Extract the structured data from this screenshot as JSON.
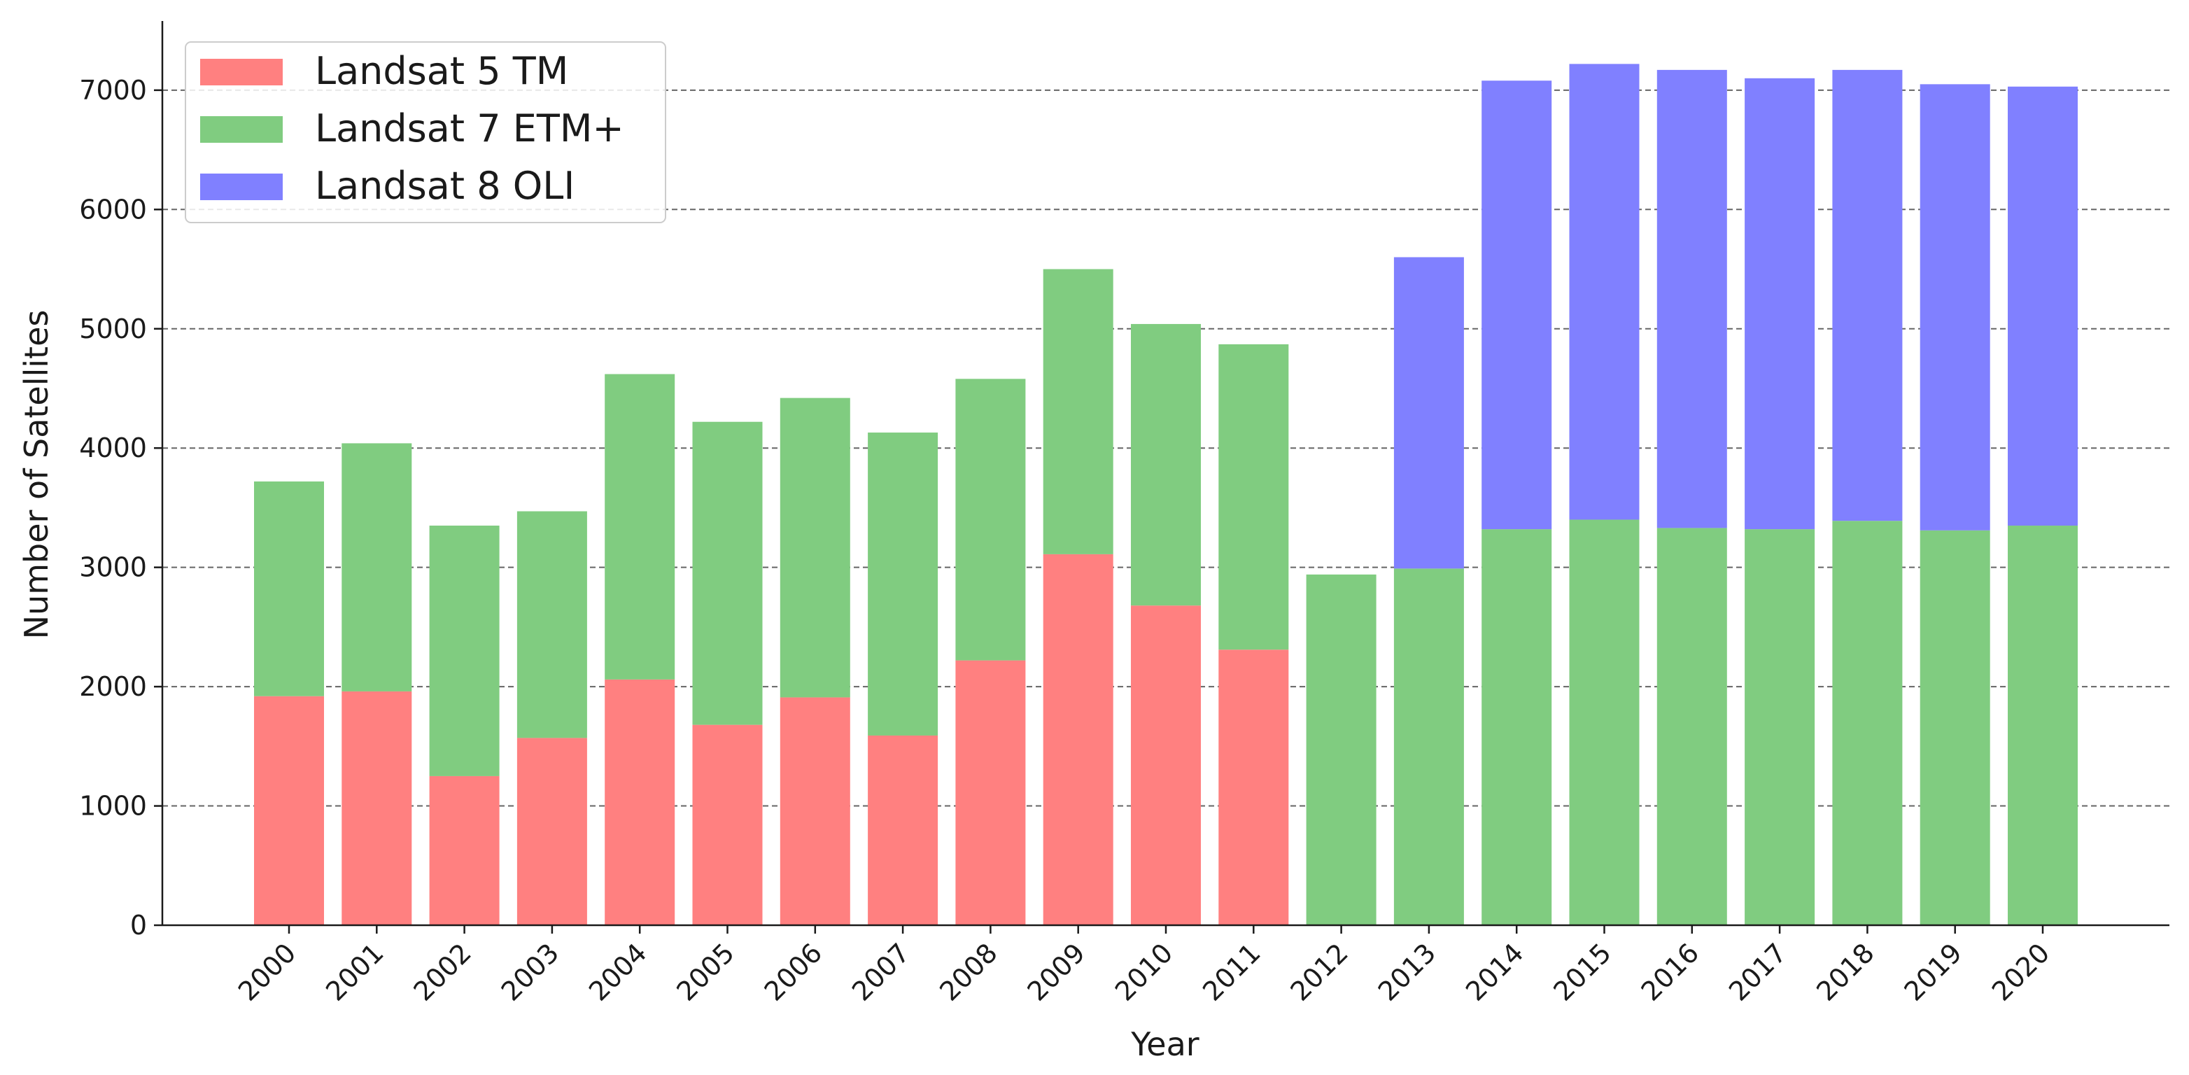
{
  "chart_data": {
    "type": "bar",
    "stacked": true,
    "title": "",
    "xlabel": "Year",
    "ylabel": "Number of Satellites",
    "categories": [
      "2000",
      "2001",
      "2002",
      "2003",
      "2004",
      "2005",
      "2006",
      "2007",
      "2008",
      "2009",
      "2010",
      "2011",
      "2012",
      "2013",
      "2014",
      "2015",
      "2016",
      "2017",
      "2018",
      "2019",
      "2020"
    ],
    "series": [
      {
        "name": "Landsat 5 TM",
        "color": "#ff8080",
        "values": [
          1920,
          1960,
          1250,
          1570,
          2060,
          1680,
          1910,
          1590,
          2220,
          3110,
          2680,
          2310,
          0,
          0,
          0,
          0,
          0,
          0,
          0,
          0,
          0
        ]
      },
      {
        "name": "Landsat 7 ETM+",
        "color": "#80cc80",
        "values": [
          1800,
          2080,
          2100,
          1900,
          2560,
          2540,
          2510,
          2540,
          2360,
          2390,
          2360,
          2560,
          2940,
          2990,
          3320,
          3400,
          3330,
          3320,
          3390,
          3310,
          3350
        ]
      },
      {
        "name": "Landsat 8 OLI",
        "color": "#8080ff",
        "values": [
          0,
          0,
          0,
          0,
          0,
          0,
          0,
          0,
          0,
          0,
          0,
          0,
          0,
          2610,
          3760,
          3820,
          3840,
          3780,
          3780,
          3740,
          3680
        ]
      }
    ],
    "yticks": [
      0,
      1000,
      2000,
      3000,
      4000,
      5000,
      6000,
      7000
    ],
    "ylim": [
      0,
      7580
    ],
    "grid": "horizontal dashed",
    "legend_position": "top-left"
  }
}
